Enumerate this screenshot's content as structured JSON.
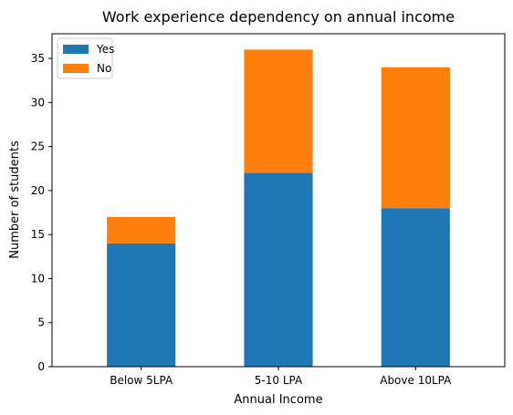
{
  "chart_data": {
    "type": "bar",
    "stacked": true,
    "title": "Work experience dependency on annual income",
    "xlabel": "Annual Income",
    "ylabel": "Number of students",
    "categories": [
      "Below 5LPA",
      "5-10 LPA",
      "Above 10LPA"
    ],
    "series": [
      {
        "name": "Yes",
        "values": [
          14,
          22,
          18
        ],
        "color": "#1f77b4"
      },
      {
        "name": "No",
        "values": [
          3,
          14,
          16
        ],
        "color": "#ff7f0e"
      }
    ],
    "ylim": [
      0,
      37.8
    ],
    "yticks": [
      0,
      5,
      10,
      15,
      20,
      25,
      30,
      35
    ],
    "grid": false,
    "legend_position": "top-left"
  }
}
